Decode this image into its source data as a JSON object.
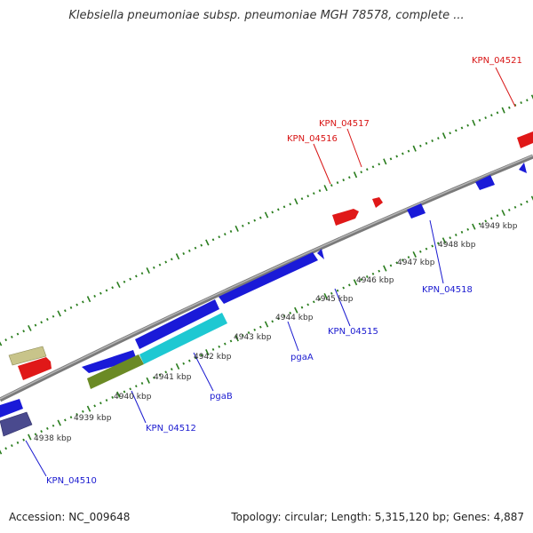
{
  "title": "Klebsiella pneumoniae subsp. pneumoniae MGH 78578, complete ...",
  "footer": {
    "accession": "Accession: NC_009648",
    "summary": "Topology: circular; Length: 5,315,120 bp; Genes: 4,887"
  },
  "colors": {
    "backbone": "#8c8c8c",
    "tick": "#2a7d1e",
    "forward_label": "#d81414",
    "reverse_label": "#1a1ad0"
  },
  "scale": {
    "tick_labels": [
      "4938 kbp",
      "4939 kbp",
      "4940 kbp",
      "4941 kbp",
      "4942 kbp",
      "4943 kbp",
      "4944 kbp",
      "4945 kbp",
      "4946 kbp",
      "4947 kbp",
      "4948 kbp",
      "4949 kbp"
    ]
  },
  "gene_labels": [
    {
      "id": "KPN_04521",
      "text": "KPN_04521",
      "strand": "forward"
    },
    {
      "id": "KPN_04517",
      "text": "KPN_04517",
      "strand": "forward"
    },
    {
      "id": "KPN_04516",
      "text": "KPN_04516",
      "strand": "forward"
    },
    {
      "id": "KPN_04518",
      "text": "KPN_04518",
      "strand": "reverse"
    },
    {
      "id": "KPN_04515",
      "text": "KPN_04515",
      "strand": "reverse"
    },
    {
      "id": "pgaA",
      "text": "pgaA",
      "strand": "reverse"
    },
    {
      "id": "pgaB",
      "text": "pgaB",
      "strand": "reverse"
    },
    {
      "id": "KPN_04512",
      "text": "KPN_04512",
      "strand": "reverse"
    },
    {
      "id": "KPN_04510",
      "text": "KPN_04510",
      "strand": "reverse"
    }
  ]
}
